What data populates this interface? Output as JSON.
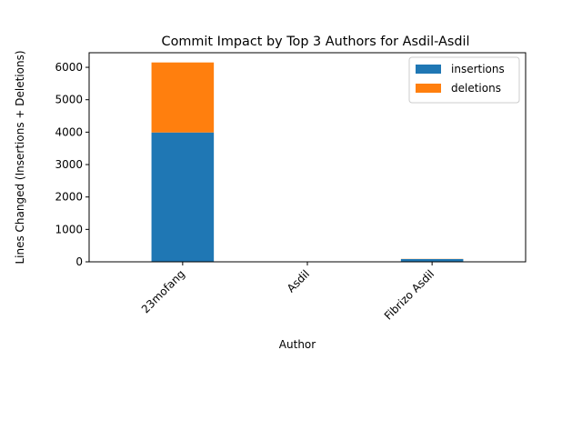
{
  "chart_data": {
    "type": "bar",
    "stacked": true,
    "title": "Commit Impact by Top 3 Authors for Asdil-Asdil",
    "xlabel": "Author",
    "ylabel": "Lines Changed (Insertions + Deletions)",
    "categories": [
      "23mofang",
      "Asdil",
      "Fibrizo Asdil"
    ],
    "series": [
      {
        "name": "insertions",
        "values": [
          3990,
          8,
          85
        ],
        "color": "#1f77b4"
      },
      {
        "name": "deletions",
        "values": [
          2160,
          0,
          5
        ],
        "color": "#ff7f0e"
      }
    ],
    "ylim": [
      0,
      6450
    ],
    "yticks": [
      0,
      1000,
      2000,
      3000,
      4000,
      5000,
      6000
    ],
    "grid": false,
    "legend_position": "top-right",
    "xtick_rotation": "45deg"
  }
}
